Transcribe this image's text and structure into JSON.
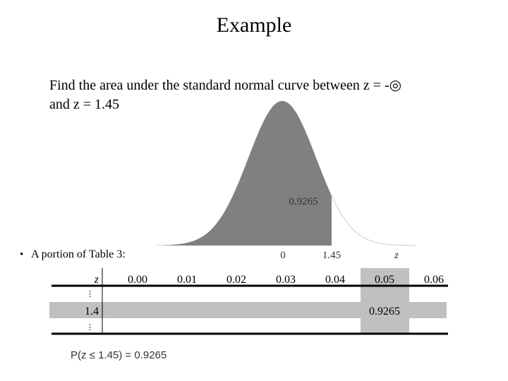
{
  "title": "Example",
  "problem": [
    "Find the area under the standard normal curve between z = -◎",
    "and z = 1.45"
  ],
  "figure": {
    "area_label": "0.9265",
    "axis_labels": [
      "0",
      "1.45",
      "z"
    ]
  },
  "bullet": "A portion of Table 3:",
  "table": {
    "header": [
      "z",
      "0.00",
      "0.01",
      "0.02",
      "0.03",
      "0.04",
      "0.05",
      "0.06"
    ],
    "rows": [
      {
        "z": "⋮"
      },
      {
        "z": "1.4",
        "value": "0.9265"
      },
      {
        "z": "⋮"
      }
    ]
  },
  "formula": "P(z ≤ 1.45) = 0.9265"
}
